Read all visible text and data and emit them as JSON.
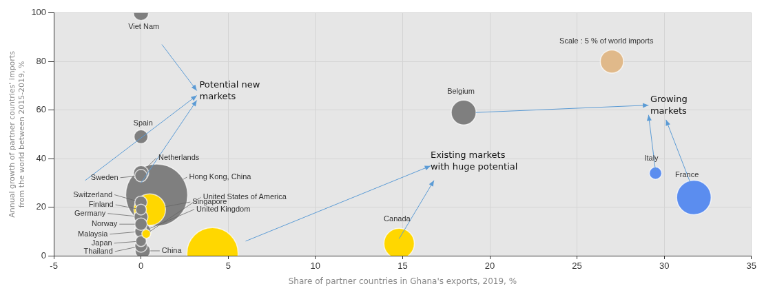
{
  "chart_data": {
    "type": "bubble",
    "xlabel": "Share of partner countries in Ghana's exports, 2019, %",
    "ylabel": "Annual growth of partner countries' imports from the world between 2015-2019, %",
    "xlim": [
      -5,
      35
    ],
    "xticks": [
      -5,
      0,
      5,
      10,
      15,
      20,
      25,
      30,
      35
    ],
    "ylim": [
      0,
      100
    ],
    "yticks": [
      0,
      20,
      40,
      60,
      80,
      100
    ],
    "grid": true,
    "legend": false,
    "annotations": [
      "Potential new markets",
      "Existing markets with huge potential",
      "Growing markets"
    ],
    "series": [
      {
        "name": "Viet Nam",
        "color": "#7f7f7f",
        "x": [
          0
        ],
        "values": [
          100
        ],
        "sizes": [
          0.06
        ]
      },
      {
        "name": "Spain",
        "color": "#7f7f7f",
        "x": [
          0
        ],
        "values": [
          49
        ],
        "sizes": [
          0.05
        ]
      },
      {
        "name": "Netherlands",
        "color": "#7f7f7f",
        "x": [
          0
        ],
        "values": [
          34
        ],
        "sizes": [
          0.06
        ]
      },
      {
        "name": "Sweden",
        "color": "#7f7f7f",
        "x": [
          0
        ],
        "values": [
          33
        ],
        "sizes": [
          0.04
        ]
      },
      {
        "name": "Hong Kong, China",
        "color": "#7f7f7f",
        "x": [
          0.9
        ],
        "values": [
          25
        ],
        "sizes": [
          1
        ]
      },
      {
        "name": "Singapore",
        "color": "#ffd700",
        "x": [
          0.5
        ],
        "values": [
          19
        ],
        "sizes": [
          0.26
        ]
      },
      {
        "name": "Switzerland",
        "color": "#7f7f7f",
        "x": [
          0
        ],
        "values": [
          22
        ],
        "sizes": [
          0.04
        ]
      },
      {
        "name": "Finland",
        "color": "#7f7f7f",
        "x": [
          0
        ],
        "values": [
          19
        ],
        "sizes": [
          0.03
        ]
      },
      {
        "name": "Germany",
        "color": "#7f7f7f",
        "x": [
          0
        ],
        "values": [
          16
        ],
        "sizes": [
          0.05
        ]
      },
      {
        "name": "Norway",
        "color": "#7f7f7f",
        "x": [
          0
        ],
        "values": [
          13
        ],
        "sizes": [
          0.04
        ]
      },
      {
        "name": "United States of America",
        "color": "#ffd700",
        "x": [
          0.3
        ],
        "values": [
          9
        ],
        "sizes": [
          0.02
        ]
      },
      {
        "name": "United Kingdom",
        "color": "#7f7f7f",
        "x": [
          0.1
        ],
        "values": [
          10
        ],
        "sizes": [
          0.07
        ]
      },
      {
        "name": "Malaysia",
        "color": "#7f7f7f",
        "x": [
          0
        ],
        "values": [
          10
        ],
        "sizes": [
          0.04
        ]
      },
      {
        "name": "Japan",
        "color": "#7f7f7f",
        "x": [
          0
        ],
        "values": [
          6
        ],
        "sizes": [
          0.03
        ]
      },
      {
        "name": "Thailand",
        "color": "#7f7f7f",
        "x": [
          0
        ],
        "values": [
          4
        ],
        "sizes": [
          0.04
        ]
      },
      {
        "name": "China",
        "color": "#7f7f7f",
        "x": [
          0.1
        ],
        "values": [
          2
        ],
        "sizes": [
          0.06
        ]
      },
      {
        "color": "#ffd700",
        "x": [
          4.1
        ],
        "values": [
          1
        ],
        "sizes": [
          0.68
        ]
      },
      {
        "name": "Canada",
        "color": "#ffd700",
        "x": [
          14.8
        ],
        "values": [
          5
        ],
        "sizes": [
          0.24
        ]
      },
      {
        "name": "Belgium",
        "color": "#7f7f7f",
        "x": [
          18.5
        ],
        "values": [
          59
        ],
        "sizes": [
          0.16
        ]
      },
      {
        "name": "Scale : 5 % of world imports",
        "color": "#e0b98a",
        "x": [
          27
        ],
        "values": [
          80
        ],
        "sizes": [
          0.14
        ]
      },
      {
        "name": "Italy",
        "color": "#5b8def",
        "x": [
          29.5
        ],
        "values": [
          34
        ],
        "sizes": [
          0.04
        ]
      },
      {
        "name": "France",
        "color": "#5b8def",
        "x": [
          31.7
        ],
        "values": [
          24
        ],
        "sizes": [
          0.31
        ]
      }
    ]
  }
}
